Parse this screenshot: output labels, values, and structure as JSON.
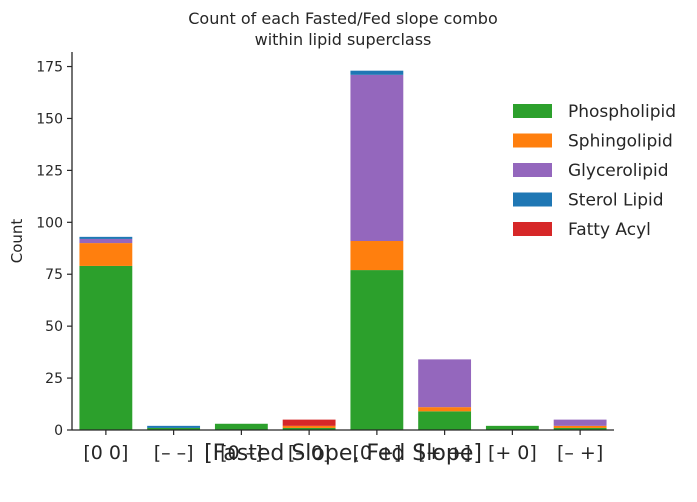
{
  "chart_data": {
    "type": "bar",
    "stacked": true,
    "title_lines": [
      "Count of each Fasted/Fed slope combo",
      "within lipid superclass"
    ],
    "xlabel": "[Fasted Slope, Fed Slope]",
    "ylabel": "Count",
    "ylim": [
      0,
      182
    ],
    "yticks": [
      0,
      25,
      50,
      75,
      100,
      125,
      150,
      175
    ],
    "grid": false,
    "legend_position": "right",
    "categories": [
      "[0 0]",
      "[– –]",
      "[0 –]",
      "[– 0]",
      "[0 +]",
      "[+ +]",
      "[+ 0]",
      "[– +]"
    ],
    "series": [
      {
        "name": "Phospholipid",
        "color": "#2ca02c",
        "values": [
          79,
          1,
          3,
          1,
          77,
          9,
          2,
          1
        ]
      },
      {
        "name": "Sphingolipid",
        "color": "#ff7f0e",
        "values": [
          11,
          0,
          0,
          1,
          14,
          2,
          0,
          1
        ]
      },
      {
        "name": "Glycerolipid",
        "color": "#9467bd",
        "values": [
          2,
          0,
          0,
          0,
          80,
          23,
          0,
          3
        ]
      },
      {
        "name": "Sterol Lipid",
        "color": "#1f77b4",
        "values": [
          1,
          1,
          0,
          0,
          2,
          0,
          0,
          0
        ]
      },
      {
        "name": "Fatty Acyl",
        "color": "#d62728",
        "values": [
          0,
          0,
          0,
          3,
          0,
          0,
          0,
          0
        ]
      }
    ]
  }
}
